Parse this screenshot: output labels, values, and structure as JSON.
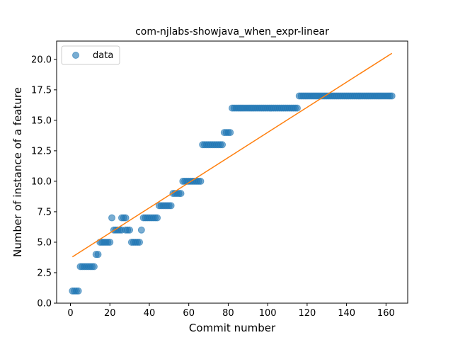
{
  "chart_data": {
    "type": "scatter",
    "title": "com-njlabs-showjava_when_expr-linear",
    "xlabel": "Commit number",
    "ylabel": "Number of instance of a feature",
    "xlim": [
      -7,
      171
    ],
    "ylim": [
      0,
      21.5
    ],
    "xticks": [
      0,
      20,
      40,
      60,
      80,
      100,
      120,
      140,
      160
    ],
    "yticks": [
      0.0,
      2.5,
      5.0,
      7.5,
      10.0,
      12.5,
      15.0,
      17.5,
      20.0
    ],
    "xtick_labels": [
      "0",
      "20",
      "40",
      "60",
      "80",
      "100",
      "120",
      "140",
      "160"
    ],
    "ytick_labels": [
      "0.0",
      "2.5",
      "5.0",
      "7.5",
      "10.0",
      "12.5",
      "15.0",
      "17.5",
      "20.0"
    ],
    "legend": {
      "position": "top-left",
      "entries": [
        "data"
      ]
    },
    "colors": {
      "points": "#1f77b4",
      "fit_line": "#ff7f0e"
    },
    "point_runs": [
      {
        "x_start": 1,
        "x_end": 4,
        "y": 1
      },
      {
        "x_start": 5,
        "x_end": 12,
        "y": 3
      },
      {
        "x_start": 13,
        "x_end": 14,
        "y": 4
      },
      {
        "x_start": 15,
        "x_end": 20,
        "y": 5
      },
      {
        "x_start": 21,
        "x_end": 21,
        "y": 7
      },
      {
        "x_start": 22,
        "x_end": 26,
        "y": 6
      },
      {
        "x_start": 26,
        "x_end": 28,
        "y": 7
      },
      {
        "x_start": 28,
        "x_end": 30,
        "y": 6
      },
      {
        "x_start": 31,
        "x_end": 35,
        "y": 5
      },
      {
        "x_start": 36,
        "x_end": 36,
        "y": 6
      },
      {
        "x_start": 37,
        "x_end": 44,
        "y": 7
      },
      {
        "x_start": 45,
        "x_end": 51,
        "y": 8
      },
      {
        "x_start": 52,
        "x_end": 56,
        "y": 9
      },
      {
        "x_start": 57,
        "x_end": 66,
        "y": 10
      },
      {
        "x_start": 67,
        "x_end": 77,
        "y": 13
      },
      {
        "x_start": 78,
        "x_end": 81,
        "y": 14
      },
      {
        "x_start": 82,
        "x_end": 115,
        "y": 16
      },
      {
        "x_start": 116,
        "x_end": 163,
        "y": 17
      }
    ],
    "fit_line": {
      "x": [
        1,
        163
      ],
      "y": [
        3.8,
        20.5
      ]
    }
  }
}
